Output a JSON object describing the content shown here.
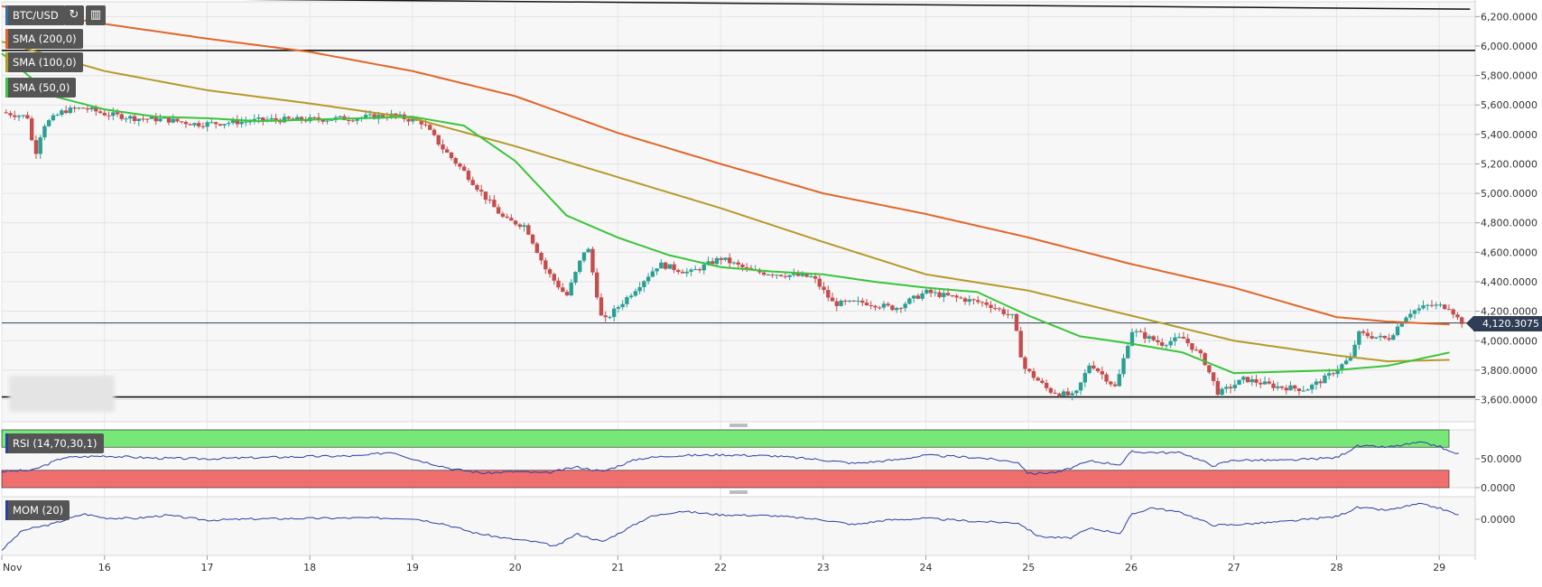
{
  "header": {
    "symbol": "BTC/USD",
    "icons": [
      "refresh-icon",
      "chart-settings-icon"
    ]
  },
  "indicators": {
    "sma200": "SMA (200,0)",
    "sma100": "SMA (100,0)",
    "sma50": "SMA (50,0)",
    "rsi": "RSI (14,70,30,1)",
    "mom": "MOM (20)"
  },
  "last_price": "4,120.3075",
  "colors": {
    "sma200": "#e0662a",
    "sma100": "#b59a2a",
    "sma50": "#3bc43b",
    "candle_up": "#2a9f93",
    "candle_down": "#c44d4d",
    "rsi_overbought": "#77e877",
    "rsi_oversold": "#ef6f6f",
    "oscillator_line": "#2a3fa0"
  },
  "chart_data": [
    {
      "type": "candlestick",
      "title": "BTC/USD",
      "ylim": [
        3450,
        6300
      ],
      "yticks": [
        3600,
        3800,
        4000,
        4200,
        4400,
        4600,
        4800,
        5000,
        5200,
        5400,
        5600,
        5800,
        6000,
        6200
      ],
      "ytick_labels": [
        "3,600.0000",
        "3,800.0000",
        "4,000.0000",
        "4,200.0000",
        "4,400.0000",
        "4,600.0000",
        "4,800.0000",
        "5,000.0000",
        "5,200.0000",
        "5,400.0000",
        "5,600.0000",
        "5,800.0000",
        "6,000.0000",
        "6,200.0000"
      ],
      "x_labels": [
        "Nov",
        "16",
        "17",
        "18",
        "19",
        "20",
        "21",
        "22",
        "23",
        "24",
        "25",
        "26",
        "27",
        "28",
        "29"
      ],
      "x_label_days": [
        15,
        16,
        17,
        18,
        19,
        20,
        21,
        22,
        23,
        24,
        25,
        26,
        27,
        28,
        29
      ],
      "xlim_days": [
        15.0,
        29.35
      ],
      "horizontal_lines": [
        5970,
        3618
      ],
      "last_price_line": 4120.3075,
      "trendline": {
        "from": [
          15.0,
          6330
        ],
        "to": [
          29.3,
          6250
        ]
      },
      "price_path": [
        [
          15.0,
          5550
        ],
        [
          15.25,
          5520
        ],
        [
          15.32,
          5250
        ],
        [
          15.4,
          5460
        ],
        [
          15.6,
          5560
        ],
        [
          15.8,
          5580
        ],
        [
          16.0,
          5540
        ],
        [
          16.3,
          5510
        ],
        [
          16.6,
          5500
        ],
        [
          16.9,
          5470
        ],
        [
          17.2,
          5480
        ],
        [
          17.6,
          5500
        ],
        [
          18.0,
          5500
        ],
        [
          18.4,
          5510
        ],
        [
          18.8,
          5530
        ],
        [
          19.1,
          5480
        ],
        [
          19.3,
          5300
        ],
        [
          19.5,
          5150
        ],
        [
          19.7,
          4980
        ],
        [
          19.9,
          4820
        ],
        [
          20.1,
          4780
        ],
        [
          20.3,
          4480
        ],
        [
          20.5,
          4300
        ],
        [
          20.7,
          4660
        ],
        [
          20.85,
          4120
        ],
        [
          21.1,
          4300
        ],
        [
          21.4,
          4520
        ],
        [
          21.7,
          4460
        ],
        [
          22.0,
          4560
        ],
        [
          22.3,
          4470
        ],
        [
          22.6,
          4450
        ],
        [
          22.9,
          4430
        ],
        [
          23.1,
          4250
        ],
        [
          23.4,
          4260
        ],
        [
          23.7,
          4220
        ],
        [
          24.0,
          4330
        ],
        [
          24.3,
          4290
        ],
        [
          24.6,
          4250
        ],
        [
          24.85,
          4160
        ],
        [
          24.95,
          3820
        ],
        [
          25.2,
          3660
        ],
        [
          25.45,
          3620
        ],
        [
          25.6,
          3850
        ],
        [
          25.85,
          3680
        ],
        [
          26.0,
          4070
        ],
        [
          26.3,
          3980
        ],
        [
          26.5,
          4020
        ],
        [
          26.7,
          3880
        ],
        [
          26.85,
          3640
        ],
        [
          27.1,
          3740
        ],
        [
          27.4,
          3690
        ],
        [
          27.7,
          3670
        ],
        [
          27.9,
          3750
        ],
        [
          28.15,
          3890
        ],
        [
          28.2,
          4050
        ],
        [
          28.5,
          4010
        ],
        [
          28.7,
          4190
        ],
        [
          28.9,
          4240
        ],
        [
          29.1,
          4230
        ],
        [
          29.2,
          4130
        ],
        [
          29.3,
          4120
        ]
      ],
      "series": [
        {
          "name": "SMA (200,0)",
          "values": [
            [
              15.0,
              6270
            ],
            [
              16.0,
              6150
            ],
            [
              17.0,
              6050
            ],
            [
              18.0,
              5960
            ],
            [
              19.0,
              5830
            ],
            [
              20.0,
              5660
            ],
            [
              21.0,
              5410
            ],
            [
              22.0,
              5200
            ],
            [
              23.0,
              5000
            ],
            [
              24.0,
              4860
            ],
            [
              25.0,
              4700
            ],
            [
              26.0,
              4520
            ],
            [
              27.0,
              4360
            ],
            [
              28.0,
              4160
            ],
            [
              28.5,
              4130
            ],
            [
              29.1,
              4110
            ]
          ]
        },
        {
          "name": "SMA (100,0)",
          "values": [
            [
              15.0,
              6030
            ],
            [
              16.0,
              5830
            ],
            [
              17.0,
              5700
            ],
            [
              18.0,
              5610
            ],
            [
              19.0,
              5510
            ],
            [
              20.0,
              5320
            ],
            [
              21.0,
              5110
            ],
            [
              22.0,
              4900
            ],
            [
              23.0,
              4670
            ],
            [
              24.0,
              4450
            ],
            [
              25.0,
              4340
            ],
            [
              26.0,
              4170
            ],
            [
              27.0,
              4000
            ],
            [
              28.0,
              3900
            ],
            [
              28.5,
              3860
            ],
            [
              29.1,
              3870
            ]
          ]
        },
        {
          "name": "SMA (50,0)",
          "values": [
            [
              15.0,
              5950
            ],
            [
              15.5,
              5660
            ],
            [
              16.0,
              5570
            ],
            [
              16.5,
              5520
            ],
            [
              17.0,
              5510
            ],
            [
              17.5,
              5490
            ],
            [
              18.0,
              5500
            ],
            [
              18.5,
              5510
            ],
            [
              19.0,
              5520
            ],
            [
              19.5,
              5460
            ],
            [
              20.0,
              5220
            ],
            [
              20.5,
              4850
            ],
            [
              21.0,
              4700
            ],
            [
              21.5,
              4580
            ],
            [
              22.0,
              4500
            ],
            [
              22.5,
              4470
            ],
            [
              23.0,
              4450
            ],
            [
              23.5,
              4400
            ],
            [
              24.0,
              4360
            ],
            [
              24.5,
              4330
            ],
            [
              25.0,
              4170
            ],
            [
              25.5,
              4030
            ],
            [
              26.0,
              3980
            ],
            [
              26.5,
              3920
            ],
            [
              27.0,
              3780
            ],
            [
              27.5,
              3790
            ],
            [
              28.0,
              3800
            ],
            [
              28.5,
              3830
            ],
            [
              29.1,
              3920
            ]
          ]
        }
      ]
    },
    {
      "type": "line",
      "title": "RSI (14,70,30,1)",
      "ylim": [
        0,
        100
      ],
      "yticks": [
        0,
        50
      ],
      "ytick_labels": [
        "0.0000",
        "50.0000"
      ],
      "overbought": 70,
      "oversold": 30,
      "values": [
        [
          15.0,
          28
        ],
        [
          15.3,
          30
        ],
        [
          15.6,
          52
        ],
        [
          16.0,
          55
        ],
        [
          16.5,
          51
        ],
        [
          17.0,
          50
        ],
        [
          17.5,
          52
        ],
        [
          18.0,
          54
        ],
        [
          18.5,
          55
        ],
        [
          18.8,
          62
        ],
        [
          19.0,
          50
        ],
        [
          19.4,
          32
        ],
        [
          19.7,
          25
        ],
        [
          20.0,
          28
        ],
        [
          20.3,
          25
        ],
        [
          20.6,
          36
        ],
        [
          20.85,
          28
        ],
        [
          21.2,
          50
        ],
        [
          21.5,
          55
        ],
        [
          22.0,
          57
        ],
        [
          22.5,
          55
        ],
        [
          23.0,
          48
        ],
        [
          23.3,
          42
        ],
        [
          23.7,
          48
        ],
        [
          24.0,
          56
        ],
        [
          24.5,
          52
        ],
        [
          24.9,
          44
        ],
        [
          25.0,
          24
        ],
        [
          25.3,
          27
        ],
        [
          25.6,
          46
        ],
        [
          25.9,
          40
        ],
        [
          26.0,
          62
        ],
        [
          26.5,
          60
        ],
        [
          26.8,
          38
        ],
        [
          27.0,
          48
        ],
        [
          27.5,
          47
        ],
        [
          28.0,
          52
        ],
        [
          28.2,
          72
        ],
        [
          28.5,
          70
        ],
        [
          28.8,
          78
        ],
        [
          29.0,
          72
        ],
        [
          29.1,
          62
        ],
        [
          29.2,
          58
        ]
      ]
    },
    {
      "type": "line",
      "title": "MOM (20)",
      "yticks": [
        0
      ],
      "ytick_labels": [
        "0.0000"
      ],
      "ylim": [
        -800,
        500
      ],
      "values": [
        [
          15.0,
          -680
        ],
        [
          15.2,
          -250
        ],
        [
          15.5,
          -100
        ],
        [
          15.8,
          120
        ],
        [
          16.0,
          30
        ],
        [
          16.3,
          20
        ],
        [
          16.6,
          90
        ],
        [
          17.0,
          -20
        ],
        [
          17.5,
          10
        ],
        [
          18.0,
          20
        ],
        [
          18.5,
          30
        ],
        [
          19.0,
          20
        ],
        [
          19.3,
          -100
        ],
        [
          19.6,
          -300
        ],
        [
          19.9,
          -420
        ],
        [
          20.2,
          -500
        ],
        [
          20.4,
          -600
        ],
        [
          20.6,
          -320
        ],
        [
          20.85,
          -500
        ],
        [
          21.1,
          -200
        ],
        [
          21.3,
          50
        ],
        [
          21.6,
          180
        ],
        [
          22.0,
          100
        ],
        [
          22.5,
          80
        ],
        [
          23.0,
          -10
        ],
        [
          23.3,
          -120
        ],
        [
          23.6,
          -20
        ],
        [
          24.0,
          20
        ],
        [
          24.5,
          -50
        ],
        [
          24.9,
          -80
        ],
        [
          25.1,
          -380
        ],
        [
          25.4,
          -420
        ],
        [
          25.6,
          -200
        ],
        [
          25.9,
          -310
        ],
        [
          26.0,
          100
        ],
        [
          26.2,
          260
        ],
        [
          26.5,
          140
        ],
        [
          26.8,
          -130
        ],
        [
          27.0,
          -120
        ],
        [
          27.5,
          -50
        ],
        [
          28.0,
          60
        ],
        [
          28.2,
          260
        ],
        [
          28.5,
          200
        ],
        [
          28.8,
          340
        ],
        [
          29.0,
          250
        ],
        [
          29.2,
          80
        ]
      ]
    }
  ]
}
